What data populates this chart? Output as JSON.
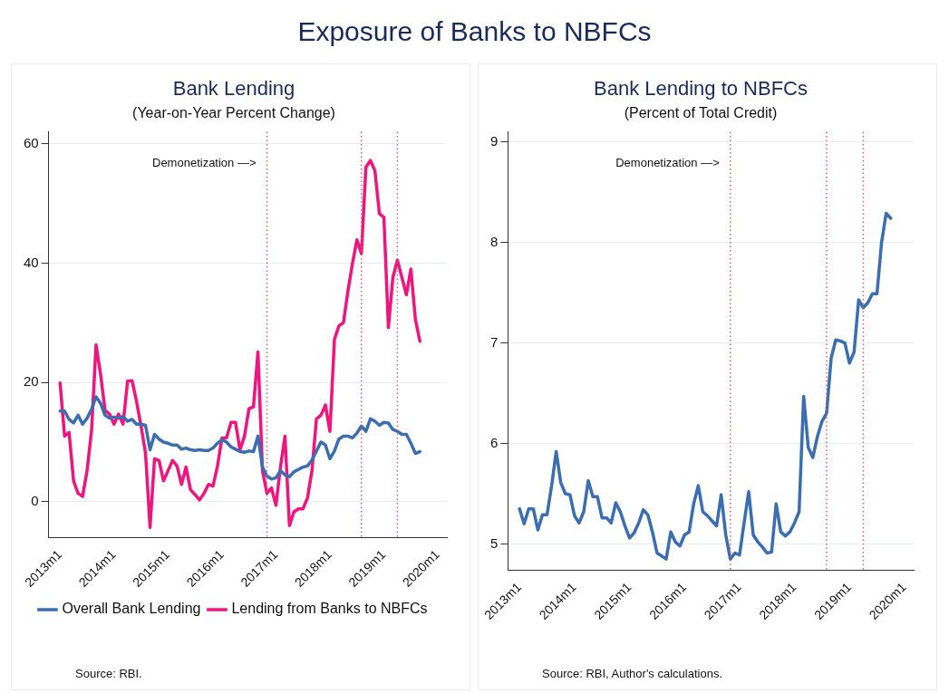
{
  "chart_data": [
    {
      "type": "other",
      "title": "Exposure of Banks to NBFCs"
    },
    {
      "type": "line",
      "title": "Bank Lending",
      "subtitle": "(Year-on-Year Percent Change)",
      "x": [
        "2013-01",
        "2013-02",
        "2013-03",
        "2013-04",
        "2013-05",
        "2013-06",
        "2013-07",
        "2013-08",
        "2013-09",
        "2013-10",
        "2013-11",
        "2013-12",
        "2014-01",
        "2014-02",
        "2014-03",
        "2014-04",
        "2014-05",
        "2014-06",
        "2014-07",
        "2014-08",
        "2014-09",
        "2014-10",
        "2014-11",
        "2014-12",
        "2015-01",
        "2015-02",
        "2015-03",
        "2015-04",
        "2015-05",
        "2015-06",
        "2015-07",
        "2015-08",
        "2015-09",
        "2015-10",
        "2015-11",
        "2015-12",
        "2016-01",
        "2016-02",
        "2016-03",
        "2016-04",
        "2016-05",
        "2016-06",
        "2016-07",
        "2016-08",
        "2016-09",
        "2016-10",
        "2016-11",
        "2016-12",
        "2017-01",
        "2017-02",
        "2017-03",
        "2017-04",
        "2017-05",
        "2017-06",
        "2017-07",
        "2017-08",
        "2017-09",
        "2017-10",
        "2017-11",
        "2017-12",
        "2018-01",
        "2018-02",
        "2018-03",
        "2018-04",
        "2018-05",
        "2018-06",
        "2018-07",
        "2018-08",
        "2018-09",
        "2018-10",
        "2018-11",
        "2018-12",
        "2019-01",
        "2019-02",
        "2019-03",
        "2019-04",
        "2019-05",
        "2019-06",
        "2019-07",
        "2019-08",
        "2019-09"
      ],
      "series": [
        {
          "name": "Overall Bank Lending",
          "color": "#3a6eb0",
          "values": [
            15.2,
            15.2,
            13.8,
            13.2,
            14.5,
            13,
            14,
            15.5,
            17.6,
            16.5,
            14.5,
            14,
            14.2,
            14,
            14.3,
            13.5,
            13.8,
            13,
            13,
            12.8,
            8.7,
            11.3,
            10.5,
            10,
            9.8,
            9.5,
            9.5,
            8.8,
            9,
            8.7,
            8.6,
            8.7,
            8.6,
            8.6,
            9,
            9.8,
            10.4,
            10,
            9.2,
            8.8,
            8.4,
            8.3,
            8.5,
            8.4,
            11,
            5.8,
            4.3,
            3.8,
            4,
            5.2,
            4.5,
            4.2,
            5,
            5.4,
            5.8,
            6,
            7,
            8.5,
            10,
            9.5,
            7.2,
            8.5,
            10.5,
            11,
            11,
            10.7,
            11.5,
            12.7,
            11.8,
            13.9,
            13.5,
            12.8,
            13.3,
            13.2,
            12.1,
            11.8,
            11.3,
            11.3,
            9.8,
            8.1,
            8.4
          ]
        },
        {
          "name": "Lending from Banks to NBFCs",
          "color": "#f0147f",
          "values": [
            19.9,
            11,
            11.6,
            3.5,
            1.4,
            0.9,
            5.2,
            12,
            26.3,
            21.4,
            15.3,
            14.7,
            13,
            14.7,
            13,
            20.2,
            20.3,
            16.8,
            12.7,
            8.1,
            -4.3,
            7.2,
            6.9,
            3.5,
            5.2,
            6.9,
            6,
            2.9,
            5.8,
            2,
            1.2,
            0.3,
            1.4,
            2.9,
            2.6,
            6,
            10.7,
            10.7,
            13.3,
            13.3,
            8.7,
            11,
            15.6,
            15.9,
            25.1,
            5.2,
            1.4,
            2.3,
            -0.6,
            5.8,
            11,
            -4,
            -1.7,
            -1.2,
            -1.2,
            0.6,
            5.2,
            13.9,
            14.5,
            16.2,
            11.8,
            27.2,
            29.5,
            30,
            35.3,
            39.9,
            43.9,
            41.6,
            56.1,
            57.2,
            55.5,
            48.3,
            47.7,
            29.2,
            37.6,
            40.5,
            37.6,
            34.7,
            39,
            30.6,
            26.9
          ]
        }
      ],
      "xlim": [
        "2012-10-15",
        "2020-03"
      ],
      "xticks": [
        {
          "value": "2013-01",
          "label": "2013m1"
        },
        {
          "value": "2014-01",
          "label": "2014m1"
        },
        {
          "value": "2015-01",
          "label": "2015m1"
        },
        {
          "value": "2016-01",
          "label": "2016m1"
        },
        {
          "value": "2017-01",
          "label": "2017m1"
        },
        {
          "value": "2018-01",
          "label": "2018m1"
        },
        {
          "value": "2019-01",
          "label": "2019m1"
        },
        {
          "value": "2020-01",
          "label": "2020m1"
        }
      ],
      "ylim": [
        -6,
        62
      ],
      "yticks": [
        0,
        20,
        40,
        60
      ],
      "ref_lines": [
        {
          "axis": "x",
          "value": "2016-11",
          "label": "Demonetization —>",
          "color": "#e06070",
          "line_style": "dotted"
        },
        {
          "axis": "x",
          "value": "2018-08",
          "color": "#e06070",
          "line_style": "dotted"
        },
        {
          "axis": "x",
          "value": "2019-04",
          "color": "#e06070",
          "line_style": "dotted"
        }
      ],
      "annotations": [
        "Source: RBI."
      ],
      "grid": "y",
      "legend": "bottom",
      "marker": "none",
      "line_style": "solid"
    },
    {
      "type": "line",
      "title": "Bank Lending to NBFCs",
      "subtitle": "(Percent of Total Credit)",
      "x": [
        "2013-01",
        "2013-02",
        "2013-03",
        "2013-04",
        "2013-05",
        "2013-06",
        "2013-07",
        "2013-08",
        "2013-09",
        "2013-10",
        "2013-11",
        "2013-12",
        "2014-01",
        "2014-02",
        "2014-03",
        "2014-04",
        "2014-05",
        "2014-06",
        "2014-07",
        "2014-08",
        "2014-09",
        "2014-10",
        "2014-11",
        "2014-12",
        "2015-01",
        "2015-02",
        "2015-03",
        "2015-04",
        "2015-05",
        "2015-06",
        "2015-07",
        "2015-08",
        "2015-09",
        "2015-10",
        "2015-11",
        "2015-12",
        "2016-01",
        "2016-02",
        "2016-03",
        "2016-04",
        "2016-05",
        "2016-06",
        "2016-07",
        "2016-08",
        "2016-09",
        "2016-10",
        "2016-11",
        "2016-12",
        "2017-01",
        "2017-02",
        "2017-03",
        "2017-04",
        "2017-05",
        "2017-06",
        "2017-07",
        "2017-08",
        "2017-09",
        "2017-10",
        "2017-11",
        "2017-12",
        "2018-01",
        "2018-02",
        "2018-03",
        "2018-04",
        "2018-05",
        "2018-06",
        "2018-07",
        "2018-08",
        "2018-09",
        "2018-10",
        "2018-11",
        "2018-12",
        "2019-01",
        "2019-02",
        "2019-03",
        "2019-04",
        "2019-05",
        "2019-06",
        "2019-07",
        "2019-08",
        "2019-09",
        "2019-10"
      ],
      "series": [
        {
          "color": "#3a6eb0",
          "values": [
            5.35,
            5.2,
            5.35,
            5.35,
            5.14,
            5.29,
            5.29,
            5.58,
            5.92,
            5.61,
            5.5,
            5.49,
            5.28,
            5.21,
            5.32,
            5.63,
            5.47,
            5.47,
            5.26,
            5.26,
            5.21,
            5.41,
            5.32,
            5.18,
            5.06,
            5.11,
            5.21,
            5.34,
            5.29,
            5.12,
            4.91,
            4.88,
            4.85,
            5.12,
            5.02,
            4.98,
            5.09,
            5.12,
            5.4,
            5.58,
            5.32,
            5.28,
            5.23,
            5.18,
            5.49,
            5.09,
            4.85,
            4.91,
            4.89,
            5.21,
            5.52,
            5.09,
            5.02,
            4.97,
            4.91,
            4.92,
            5.4,
            5.12,
            5.08,
            5.12,
            5.21,
            5.32,
            6.47,
            5.96,
            5.86,
            6.07,
            6.22,
            6.3,
            6.85,
            7.03,
            7.02,
            7,
            6.8,
            6.91,
            7.43,
            7.35,
            7.4,
            7.49,
            7.49,
            8,
            8.29,
            8.24
          ]
        }
      ],
      "xlim": [
        "2012-10-15",
        "2020-03"
      ],
      "xticks": [
        {
          "value": "2013-01",
          "label": "2013m1"
        },
        {
          "value": "2014-01",
          "label": "2014m1"
        },
        {
          "value": "2015-01",
          "label": "2015m1"
        },
        {
          "value": "2016-01",
          "label": "2016m1"
        },
        {
          "value": "2017-01",
          "label": "2017m1"
        },
        {
          "value": "2018-01",
          "label": "2018m1"
        },
        {
          "value": "2019-01",
          "label": "2019m1"
        },
        {
          "value": "2020-01",
          "label": "2020m1"
        }
      ],
      "ylim": [
        4.74,
        9.1
      ],
      "yticks": [
        5,
        6,
        7,
        8,
        9
      ],
      "ref_lines": [
        {
          "axis": "x",
          "value": "2016-11",
          "label": "Demonetization —>",
          "color": "#e06070",
          "line_style": "dotted"
        },
        {
          "axis": "x",
          "value": "2018-08",
          "color": "#e06070",
          "line_style": "dotted"
        },
        {
          "axis": "x",
          "value": "2019-04",
          "color": "#e06070",
          "line_style": "dotted"
        }
      ],
      "annotations": [
        "Source: RBI, Author's calculations."
      ],
      "grid": "y",
      "legend": false,
      "marker": "none",
      "line_style": "solid"
    }
  ]
}
